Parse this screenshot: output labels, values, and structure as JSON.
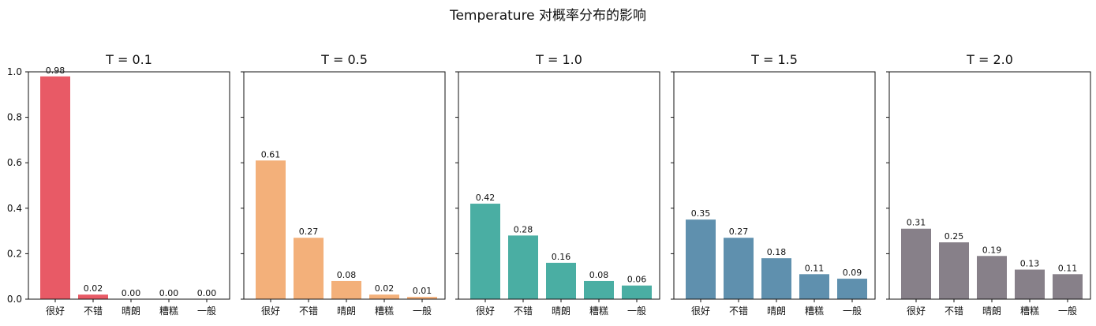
{
  "figure": {
    "suptitle": "Temperature 对概率分布的影响"
  },
  "chart_data": [
    {
      "type": "bar",
      "title": "T = 0.1",
      "categories": [
        "很好",
        "不错",
        "晴朗",
        "糟糕",
        "一般"
      ],
      "values": [
        0.98,
        0.02,
        0.0,
        0.0,
        0.0
      ],
      "value_labels": [
        "0.98",
        "0.02",
        "0.00",
        "0.00",
        "0.00"
      ],
      "xlabel": "",
      "ylabel": "",
      "ylim": [
        0,
        1
      ],
      "yticks": [
        0,
        0.2,
        0.4,
        0.6,
        0.8,
        1.0
      ],
      "ytick_labels": [
        "0.0",
        "0.2",
        "0.4",
        "0.6",
        "0.8",
        "1.0"
      ],
      "color": "#e85a66",
      "grid": false
    },
    {
      "type": "bar",
      "title": "T = 0.5",
      "categories": [
        "很好",
        "不错",
        "晴朗",
        "糟糕",
        "一般"
      ],
      "values": [
        0.61,
        0.27,
        0.08,
        0.02,
        0.01
      ],
      "value_labels": [
        "0.61",
        "0.27",
        "0.08",
        "0.02",
        "0.01"
      ],
      "xlabel": "",
      "ylabel": "",
      "ylim": [
        0,
        1
      ],
      "yticks": [
        0,
        0.2,
        0.4,
        0.6,
        0.8,
        1.0
      ],
      "ytick_labels": [],
      "color": "#f3b07a",
      "grid": false
    },
    {
      "type": "bar",
      "title": "T = 1.0",
      "categories": [
        "很好",
        "不错",
        "晴朗",
        "糟糕",
        "一般"
      ],
      "values": [
        0.42,
        0.28,
        0.16,
        0.08,
        0.06
      ],
      "value_labels": [
        "0.42",
        "0.28",
        "0.16",
        "0.08",
        "0.06"
      ],
      "xlabel": "",
      "ylabel": "",
      "ylim": [
        0,
        1
      ],
      "yticks": [
        0,
        0.2,
        0.4,
        0.6,
        0.8,
        1.0
      ],
      "ytick_labels": [],
      "color": "#4aaea3",
      "grid": false
    },
    {
      "type": "bar",
      "title": "T = 1.5",
      "categories": [
        "很好",
        "不错",
        "晴朗",
        "糟糕",
        "一般"
      ],
      "values": [
        0.35,
        0.27,
        0.18,
        0.11,
        0.09
      ],
      "value_labels": [
        "0.35",
        "0.27",
        "0.18",
        "0.11",
        "0.09"
      ],
      "xlabel": "",
      "ylabel": "",
      "ylim": [
        0,
        1
      ],
      "yticks": [
        0,
        0.2,
        0.4,
        0.6,
        0.8,
        1.0
      ],
      "ytick_labels": [],
      "color": "#5f90ae",
      "grid": false
    },
    {
      "type": "bar",
      "title": "T = 2.0",
      "categories": [
        "很好",
        "不错",
        "晴朗",
        "糟糕",
        "一般"
      ],
      "values": [
        0.31,
        0.25,
        0.19,
        0.13,
        0.11
      ],
      "value_labels": [
        "0.31",
        "0.25",
        "0.19",
        "0.13",
        "0.11"
      ],
      "xlabel": "",
      "ylabel": "",
      "ylim": [
        0,
        1
      ],
      "yticks": [
        0,
        0.2,
        0.4,
        0.6,
        0.8,
        1.0
      ],
      "ytick_labels": [],
      "color": "#878089",
      "grid": false
    }
  ]
}
